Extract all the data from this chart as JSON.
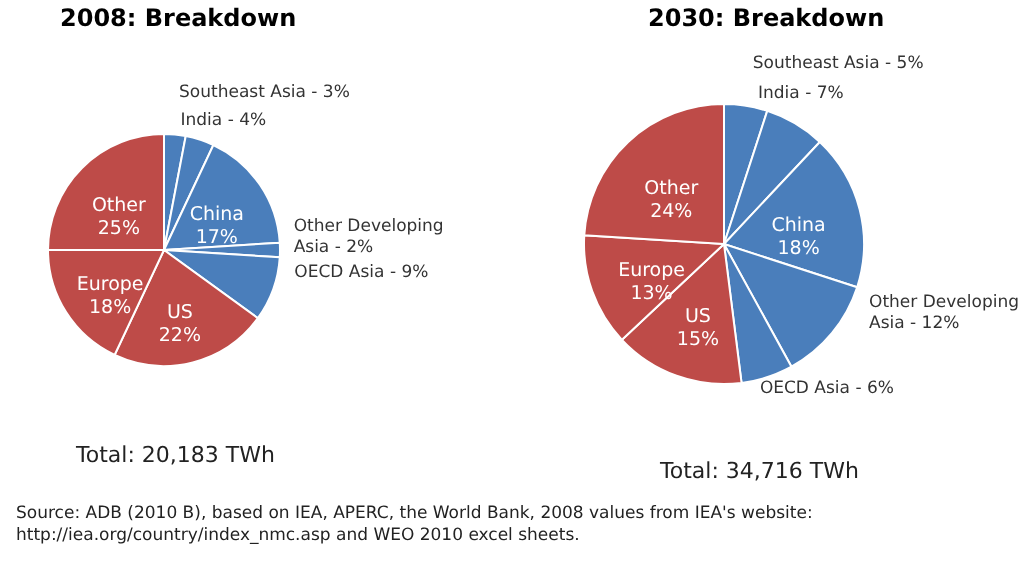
{
  "chart_data": [
    {
      "type": "pie",
      "title": "2008: Breakdown",
      "categories": [
        "Southeast Asia",
        "India",
        "China",
        "Other Developing Asia",
        "OECD Asia",
        "US",
        "Europe",
        "Other"
      ],
      "values": [
        3,
        4,
        17,
        2,
        9,
        22,
        18,
        25
      ],
      "value_labels": [
        "3%",
        "4%",
        "17%",
        "2%",
        "9%",
        "22%",
        "18%",
        "25%"
      ],
      "colors": [
        "#4a7ebb",
        "#4a7ebb",
        "#4a7ebb",
        "#4a7ebb",
        "#4a7ebb",
        "#be4b48",
        "#be4b48",
        "#be4b48"
      ],
      "annotations": [
        "Total: 20,183 TWh",
        "Source: ADB (2010 B), based on IEA, APERC, the World Bank, 2008 values from IEA's website: http://iea.org/country/index_nmc.asp and WEO 2010 excel sheets."
      ]
    },
    {
      "type": "pie",
      "title": "2030: Breakdown",
      "categories": [
        "Southeast Asia",
        "India",
        "China",
        "Other Developing Asia",
        "OECD Asia",
        "US",
        "Europe",
        "Other"
      ],
      "values": [
        5,
        7,
        18,
        12,
        6,
        15,
        13,
        24
      ],
      "value_labels": [
        "5%",
        "7%",
        "18%",
        "12%",
        "6%",
        "15%",
        "13%",
        "24%"
      ],
      "colors": [
        "#4a7ebb",
        "#4a7ebb",
        "#4a7ebb",
        "#4a7ebb",
        "#4a7ebb",
        "#be4b48",
        "#be4b48",
        "#be4b48"
      ],
      "annotations": [
        "Total: 34,716 TWh"
      ]
    }
  ]
}
